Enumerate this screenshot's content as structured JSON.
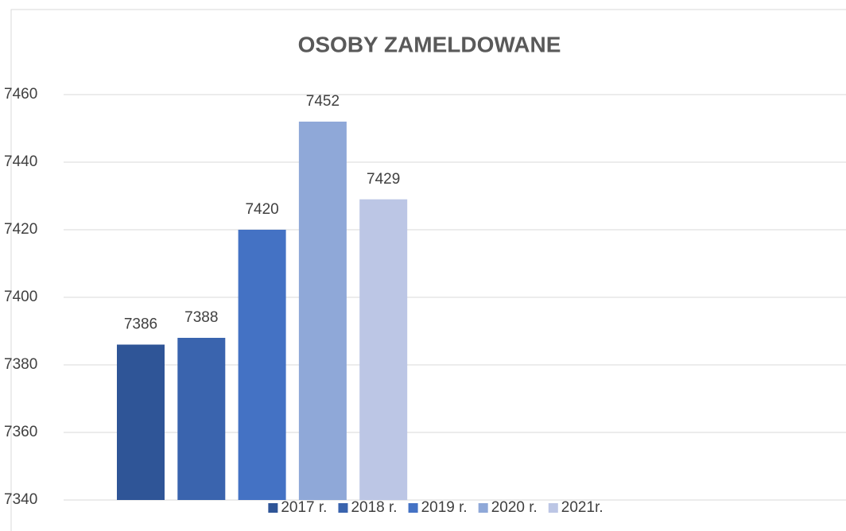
{
  "chart_data": {
    "type": "bar",
    "title": "OSOBY ZAMELDOWANE",
    "series": [
      {
        "name": "2017 r.",
        "color": "#2f5597",
        "values": [
          7386
        ]
      },
      {
        "name": "2018 r.",
        "color": "#3a64ae",
        "values": [
          7388
        ]
      },
      {
        "name": "2019 r.",
        "color": "#4472c4",
        "values": [
          7420
        ]
      },
      {
        "name": "2020 r.",
        "color": "#8fa8d8",
        "values": [
          7452
        ]
      },
      {
        "name": "2021r.",
        "color": "#bcc6e5",
        "values": [
          7429
        ]
      }
    ],
    "ylim": [
      7340,
      7460
    ],
    "yticks": [
      7340,
      7360,
      7380,
      7400,
      7420,
      7440,
      7460
    ],
    "grid": true,
    "legend": "bottom",
    "data_labels": true
  }
}
